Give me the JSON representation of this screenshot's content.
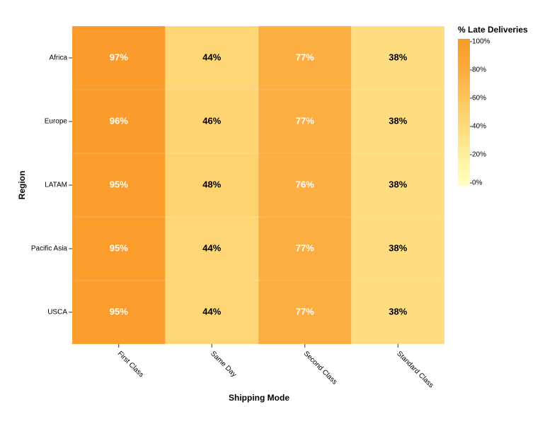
{
  "chart_data": {
    "type": "heatmap",
    "x_label": "Shipping Mode",
    "y_label": "Region",
    "categories": [
      "First Class",
      "Same Day",
      "Second Class",
      "Standard Class"
    ],
    "rows": [
      "Africa",
      "Europe",
      "LATAM",
      "Pacific Asia",
      "USCA"
    ],
    "values": [
      [
        97,
        44,
        77,
        38
      ],
      [
        96,
        46,
        77,
        38
      ],
      [
        95,
        48,
        76,
        38
      ],
      [
        95,
        44,
        77,
        38
      ],
      [
        95,
        44,
        77,
        38
      ]
    ],
    "value_labels": [
      [
        "97%",
        "44%",
        "77%",
        "38%"
      ],
      [
        "96%",
        "46%",
        "77%",
        "38%"
      ],
      [
        "95%",
        "48%",
        "76%",
        "38%"
      ],
      [
        "95%",
        "44%",
        "77%",
        "38%"
      ],
      [
        "95%",
        "44%",
        "77%",
        "38%"
      ]
    ],
    "colorbar_title": "% Late Deliveries",
    "zlim": [
      0,
      100
    ],
    "zticks": [
      {
        "value": 0,
        "label": "0%"
      },
      {
        "value": 20,
        "label": "20%"
      },
      {
        "value": 40,
        "label": "40%"
      },
      {
        "value": 60,
        "label": "60%"
      },
      {
        "value": 80,
        "label": "80%"
      },
      {
        "value": 100,
        "label": "100%"
      }
    ],
    "colorscale": [
      "#ffffc4",
      "#fff0a0",
      "#fedb7c",
      "#fec45c",
      "#fdaa3c",
      "#f99828"
    ]
  }
}
